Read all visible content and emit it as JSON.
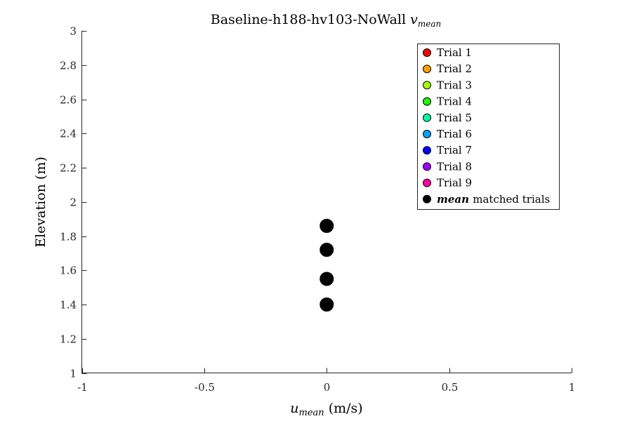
{
  "chart_data": {
    "type": "scatter",
    "title": {
      "main": "Baseline-h188-hv103-NoWall ",
      "var": "v",
      "sub": "mean"
    },
    "xlabel": {
      "var": "u",
      "sub": "mean",
      "units": " (m/s)"
    },
    "ylabel": "Elevation (m)",
    "xlim": [
      -1,
      1
    ],
    "ylim": [
      1,
      3
    ],
    "xticks": [
      -1,
      -0.5,
      0,
      0.5,
      1
    ],
    "xtick_labels": [
      "-1",
      "-0.5",
      "0",
      "0.5",
      "1"
    ],
    "yticks": [
      1,
      1.2,
      1.4,
      1.6,
      1.8,
      2,
      2.2,
      2.4,
      2.6,
      2.8,
      3
    ],
    "ytick_labels": [
      "1",
      "1.2",
      "1.4",
      "1.6",
      "1.8",
      "2",
      "2.2",
      "2.4",
      "2.6",
      "2.8",
      "3"
    ],
    "grid": false,
    "legend_position": "top-right",
    "series": [
      {
        "name": "Trial 1",
        "color": "#ff0000",
        "x": [],
        "y": []
      },
      {
        "name": "Trial 2",
        "color": "#ff9f00",
        "x": [],
        "y": []
      },
      {
        "name": "Trial 3",
        "color": "#a3ff00",
        "x": [],
        "y": []
      },
      {
        "name": "Trial 4",
        "color": "#1cff00",
        "x": [],
        "y": []
      },
      {
        "name": "Trial 5",
        "color": "#00ff9f",
        "x": [],
        "y": []
      },
      {
        "name": "Trial 6",
        "color": "#00a3ff",
        "x": [],
        "y": []
      },
      {
        "name": "Trial 7",
        "color": "#0000ff",
        "x": [],
        "y": []
      },
      {
        "name": "Trial 8",
        "color": "#9f00ff",
        "x": [],
        "y": []
      },
      {
        "name": "Trial 9",
        "color": "#ff00a3",
        "x": [],
        "y": []
      },
      {
        "name": "matched trials",
        "name_prefix": "mean",
        "color": "#000000",
        "x": [
          0,
          0,
          0,
          0
        ],
        "y": [
          1.4,
          1.55,
          1.72,
          1.86
        ]
      }
    ]
  }
}
